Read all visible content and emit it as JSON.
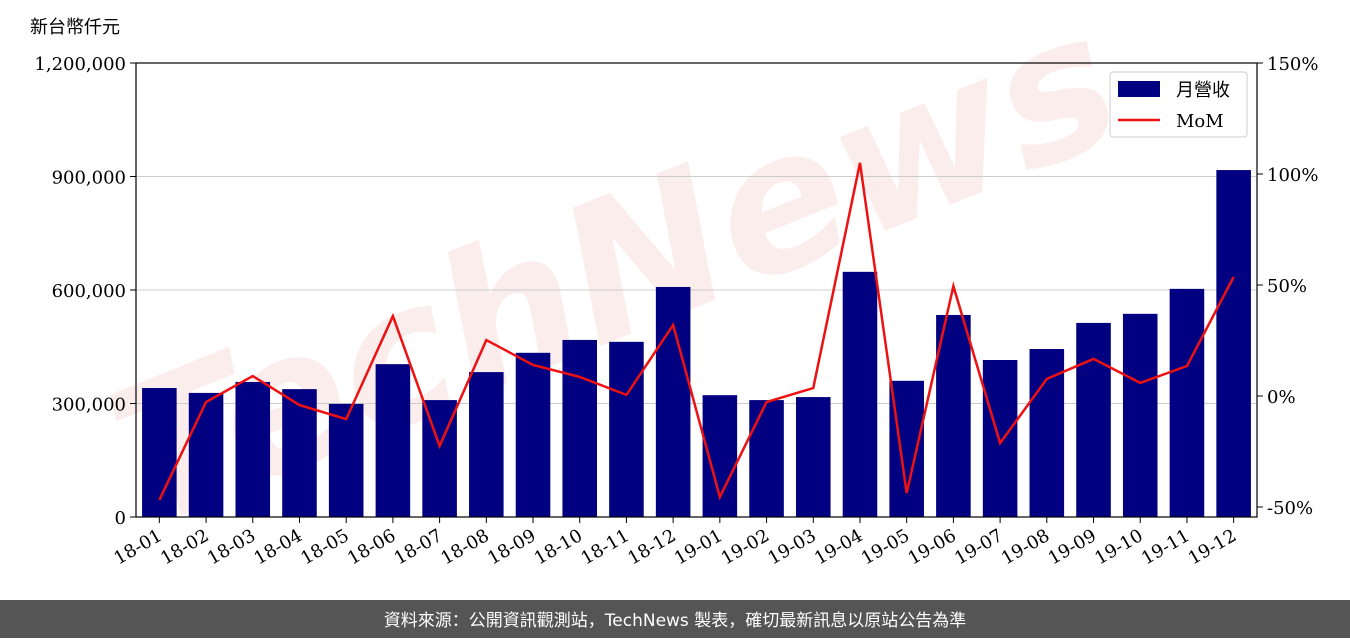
{
  "chart_data": {
    "type": "bar-line",
    "y_label": "新台幣仟元",
    "watermark": "TechNews",
    "footer": "資料來源：公開資訊觀測站，TechNews 製表，確切最新訊息以原站公告為準",
    "categories": [
      "18-01",
      "18-02",
      "18-03",
      "18-04",
      "18-05",
      "18-06",
      "18-07",
      "18-08",
      "18-09",
      "18-10",
      "18-11",
      "18-12",
      "19-01",
      "19-02",
      "19-03",
      "19-04",
      "19-05",
      "19-06",
      "19-07",
      "19-08",
      "19-09",
      "19-10",
      "19-11",
      "19-12"
    ],
    "series": [
      {
        "name": "月營收",
        "type": "bar",
        "color": "#000080",
        "values": [
          341000,
          328000,
          357000,
          338000,
          299000,
          404000,
          309000,
          383000,
          434000,
          468000,
          463000,
          608000,
          322000,
          309000,
          317000,
          648000,
          360000,
          534000,
          415000,
          444000,
          513000,
          537000,
          603000,
          917000
        ]
      },
      {
        "name": "MoM",
        "type": "line",
        "axis": "y2",
        "color": "#ee1111",
        "values": [
          -46.8,
          -2.7,
          9.0,
          -4.1,
          -10.4,
          36.0,
          -22.5,
          25.2,
          14.0,
          8.6,
          0.5,
          32.0,
          -45.5,
          -2.7,
          3.6,
          105.0,
          -43.7,
          49.5,
          -21.2,
          7.7,
          16.7,
          5.9,
          13.5,
          53.6
        ]
      }
    ],
    "ylim": [
      0,
      1200000
    ],
    "yticks": [
      0,
      {
        "value": 300000,
        "label": "300,000"
      },
      {
        "value": 600000,
        "label": "600,000"
      },
      {
        "value": 900000,
        "label": "900,000"
      },
      {
        "value": 1200000,
        "label": "1,200,000"
      }
    ],
    "y2lim": [
      -54.5,
      150
    ],
    "y2ticks": [
      {
        "value": -50,
        "label": "-50%"
      },
      {
        "value": 0,
        "label": "0%"
      },
      {
        "value": 50,
        "label": "50%"
      },
      {
        "value": 100,
        "label": "100%"
      },
      {
        "value": 150,
        "label": "150%"
      }
    ],
    "grid": true,
    "legend": "upper right"
  }
}
